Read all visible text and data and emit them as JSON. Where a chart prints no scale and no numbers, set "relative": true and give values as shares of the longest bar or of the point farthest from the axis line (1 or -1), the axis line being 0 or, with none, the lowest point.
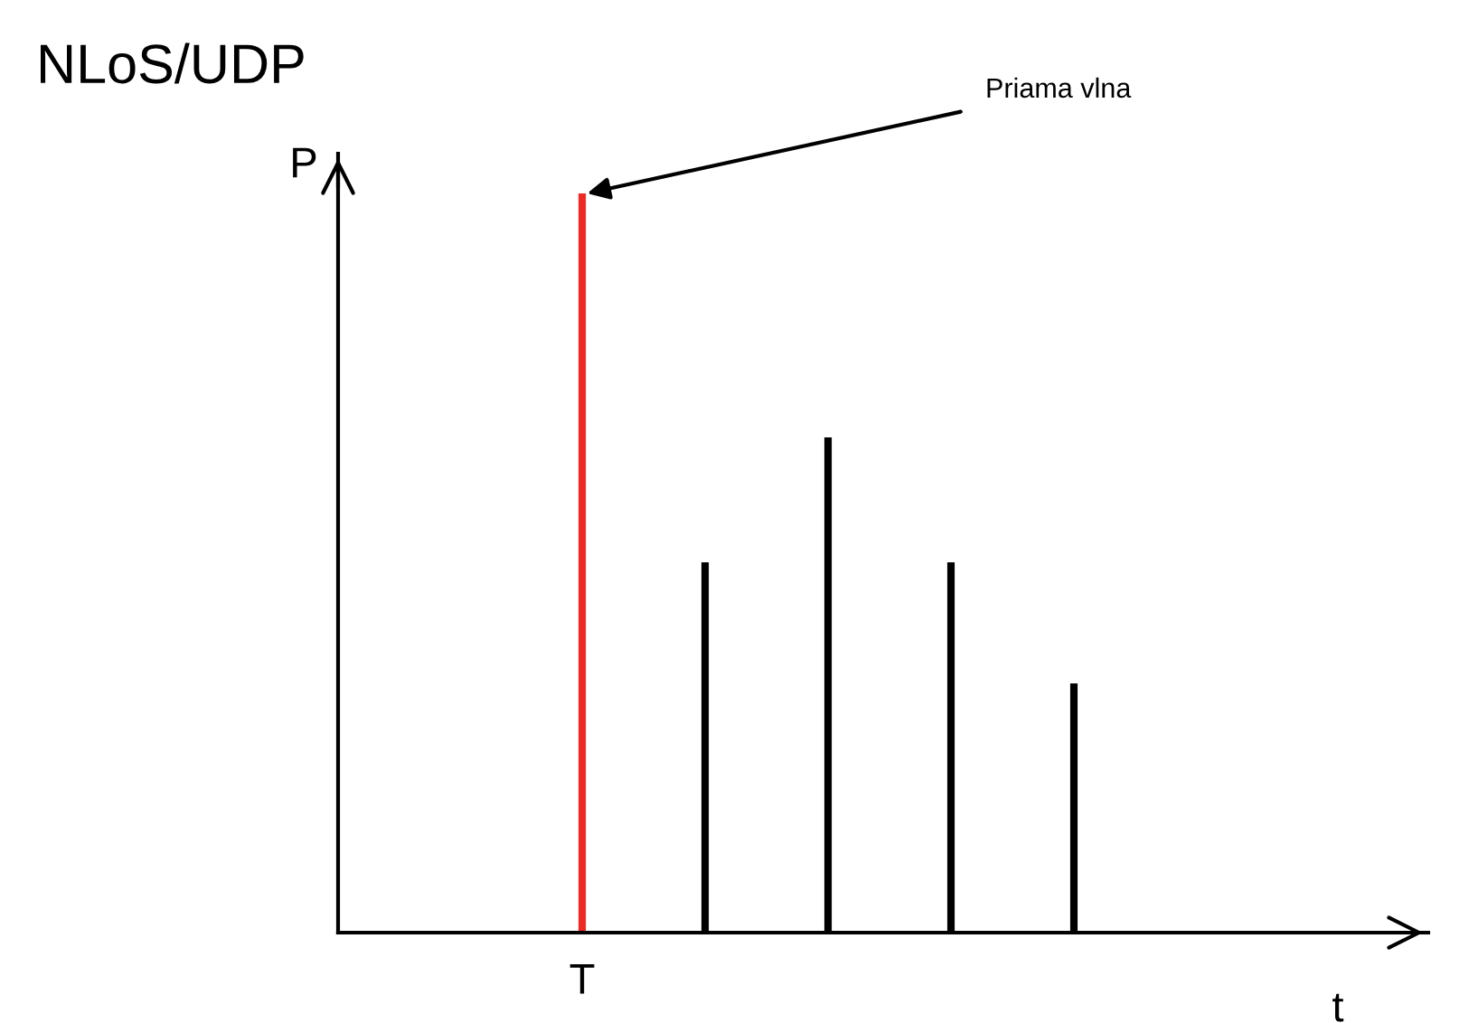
{
  "chart_data": {
    "type": "bar",
    "title": "NLoS/UDP",
    "xlabel": "t",
    "ylabel": "P",
    "relative": true,
    "categories": [
      "T",
      null,
      null,
      null,
      null
    ],
    "values": [
      1,
      0.501,
      0.67,
      0.501,
      0.337
    ],
    "colors": [
      "#ee2a24",
      "#000000",
      "#000000",
      "#000000",
      "#000000"
    ],
    "annotations": [
      {
        "text": "Priama vlna",
        "x": "T",
        "y": 1
      }
    ],
    "grid": false,
    "legend": false
  }
}
